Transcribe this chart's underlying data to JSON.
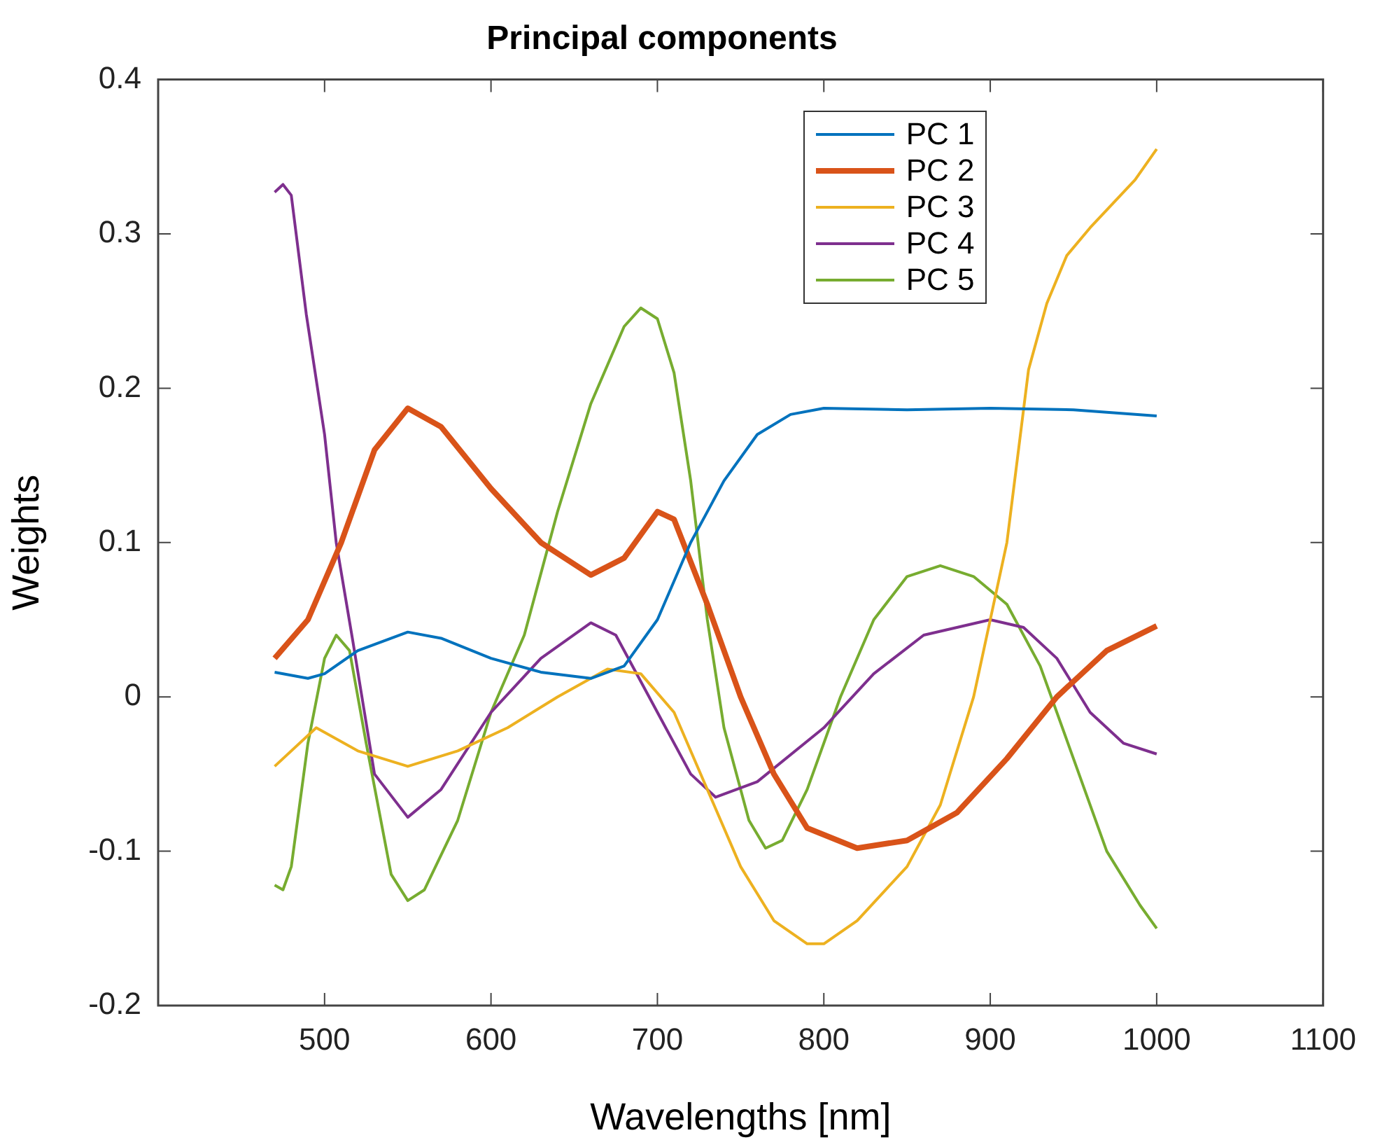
{
  "chart_data": {
    "type": "line",
    "title": "Principal components",
    "xlabel": "Wavelengths [nm]",
    "ylabel": "Weights",
    "xlim": [
      400,
      1100
    ],
    "xticks": [
      500,
      600,
      700,
      800,
      900,
      1000,
      1100
    ],
    "ylim": [
      -0.2,
      0.4
    ],
    "yticks": [
      -0.2,
      -0.1,
      0,
      0.1,
      0.2,
      0.3,
      0.4
    ],
    "grid": false,
    "legend": "top right",
    "marker": "none",
    "line_style": "solid",
    "series": [
      {
        "name": "PC 1",
        "color": "#0072bd",
        "x": [
          470,
          490,
          500,
          520,
          550,
          570,
          600,
          630,
          660,
          680,
          700,
          720,
          740,
          760,
          780,
          800,
          850,
          900,
          950,
          1000
        ],
        "values": [
          0.016,
          0.012,
          0.015,
          0.03,
          0.042,
          0.038,
          0.025,
          0.016,
          0.012,
          0.02,
          0.05,
          0.1,
          0.14,
          0.17,
          0.183,
          0.187,
          0.186,
          0.187,
          0.186,
          0.182
        ]
      },
      {
        "name": "PC 2",
        "color": "#d95319",
        "x": [
          470,
          490,
          510,
          530,
          550,
          570,
          600,
          630,
          660,
          680,
          700,
          710,
          730,
          750,
          770,
          790,
          820,
          850,
          880,
          910,
          940,
          970,
          1000
        ],
        "values": [
          0.025,
          0.05,
          0.1,
          0.16,
          0.187,
          0.175,
          0.135,
          0.1,
          0.079,
          0.09,
          0.12,
          0.115,
          0.06,
          0.0,
          -0.05,
          -0.085,
          -0.098,
          -0.093,
          -0.075,
          -0.04,
          0.0,
          0.03,
          0.046
        ]
      },
      {
        "name": "PC 3",
        "color": "#edb120",
        "x": [
          470,
          495,
          520,
          550,
          580,
          610,
          640,
          670,
          690,
          710,
          730,
          750,
          770,
          790,
          800,
          820,
          850,
          870,
          890,
          910,
          923,
          934,
          946,
          960,
          987,
          1000
        ],
        "values": [
          -0.045,
          -0.02,
          -0.035,
          -0.045,
          -0.035,
          -0.02,
          0.0,
          0.018,
          0.015,
          -0.01,
          -0.06,
          -0.11,
          -0.145,
          -0.16,
          -0.16,
          -0.145,
          -0.11,
          -0.07,
          0.0,
          0.1,
          0.212,
          0.255,
          0.286,
          0.304,
          0.335,
          0.355
        ]
      },
      {
        "name": "PC 4",
        "color": "#7e2f8e",
        "x": [
          470,
          475,
          480,
          489,
          500,
          507,
          517,
          530,
          550,
          570,
          600,
          630,
          660,
          675,
          700,
          720,
          735,
          760,
          800,
          830,
          860,
          900,
          920,
          940,
          960,
          980,
          1000
        ],
        "values": [
          0.327,
          0.332,
          0.325,
          0.248,
          0.17,
          0.1,
          0.036,
          -0.05,
          -0.078,
          -0.06,
          -0.01,
          0.025,
          0.048,
          0.04,
          -0.01,
          -0.05,
          -0.065,
          -0.055,
          -0.02,
          0.015,
          0.04,
          0.05,
          0.045,
          0.025,
          -0.01,
          -0.03,
          -0.037
        ]
      },
      {
        "name": "PC 5",
        "color": "#77ac30",
        "x": [
          470,
          475,
          480,
          490,
          500,
          507,
          515,
          525,
          540,
          550,
          560,
          580,
          600,
          620,
          640,
          660,
          680,
          690,
          700,
          710,
          720,
          730,
          740,
          755,
          765,
          775,
          790,
          810,
          830,
          850,
          870,
          890,
          910,
          930,
          950,
          970,
          990,
          1000
        ],
        "values": [
          -0.122,
          -0.125,
          -0.11,
          -0.03,
          0.025,
          0.04,
          0.03,
          -0.03,
          -0.115,
          -0.132,
          -0.125,
          -0.08,
          -0.01,
          0.04,
          0.12,
          0.19,
          0.24,
          0.252,
          0.245,
          0.21,
          0.14,
          0.05,
          -0.02,
          -0.08,
          -0.098,
          -0.093,
          -0.06,
          0.0,
          0.05,
          0.078,
          0.085,
          0.078,
          0.06,
          0.02,
          -0.04,
          -0.1,
          -0.135,
          -0.15
        ]
      }
    ]
  }
}
